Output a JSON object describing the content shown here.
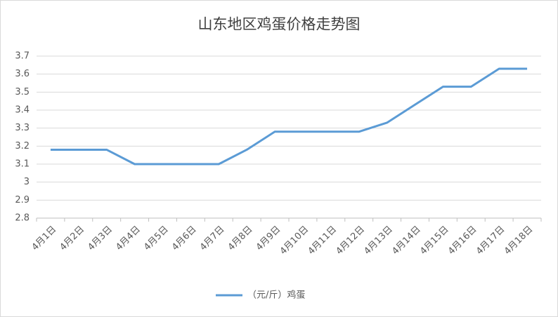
{
  "chart_data": {
    "type": "line",
    "title": "山东地区鸡蛋价格走势图",
    "categories": [
      "4月1日",
      "4月2日",
      "4月3日",
      "4月4日",
      "4月5日",
      "4月6日",
      "4月7日",
      "4月8日",
      "4月9日",
      "4月10日",
      "4月11日",
      "4月12日",
      "4月13日",
      "4月14日",
      "4月15日",
      "4月16日",
      "4月17日",
      "4月18日"
    ],
    "series": [
      {
        "name": "（元/斤）鸡蛋",
        "color": "#5b9bd5",
        "values": [
          3.18,
          3.18,
          3.18,
          3.1,
          3.1,
          3.1,
          3.1,
          3.18,
          3.28,
          3.28,
          3.28,
          3.28,
          3.33,
          3.43,
          3.53,
          3.53,
          3.63,
          3.63
        ]
      }
    ],
    "ylim": [
      2.8,
      3.7
    ],
    "yticks": [
      2.8,
      2.9,
      3,
      3.1,
      3.2,
      3.3,
      3.4,
      3.5,
      3.6,
      3.7
    ],
    "grid": true,
    "legend": "bottom"
  }
}
